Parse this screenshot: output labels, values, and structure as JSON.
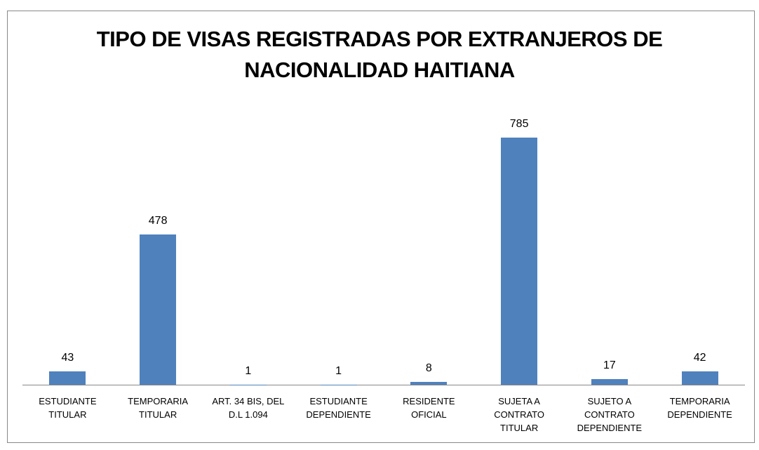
{
  "chart_data": {
    "type": "bar",
    "title": "TIPO DE VISAS REGISTRADAS POR EXTRANJEROS DE NACIONALIDAD HAITIANA",
    "categories": [
      "ESTUDIANTE TITULAR",
      "TEMPORARIA TITULAR",
      "ART. 34 BIS, DEL D.L 1.094",
      "ESTUDIANTE DEPENDIENTE",
      "RESIDENTE OFICIAL",
      "SUJETA A CONTRATO TITULAR",
      "SUJETO A CONTRATO DEPENDIENTE",
      "TEMPORARIA DEPENDIENTE"
    ],
    "values": [
      43,
      478,
      1,
      1,
      8,
      785,
      17,
      42
    ],
    "color": "#4f81bd"
  }
}
